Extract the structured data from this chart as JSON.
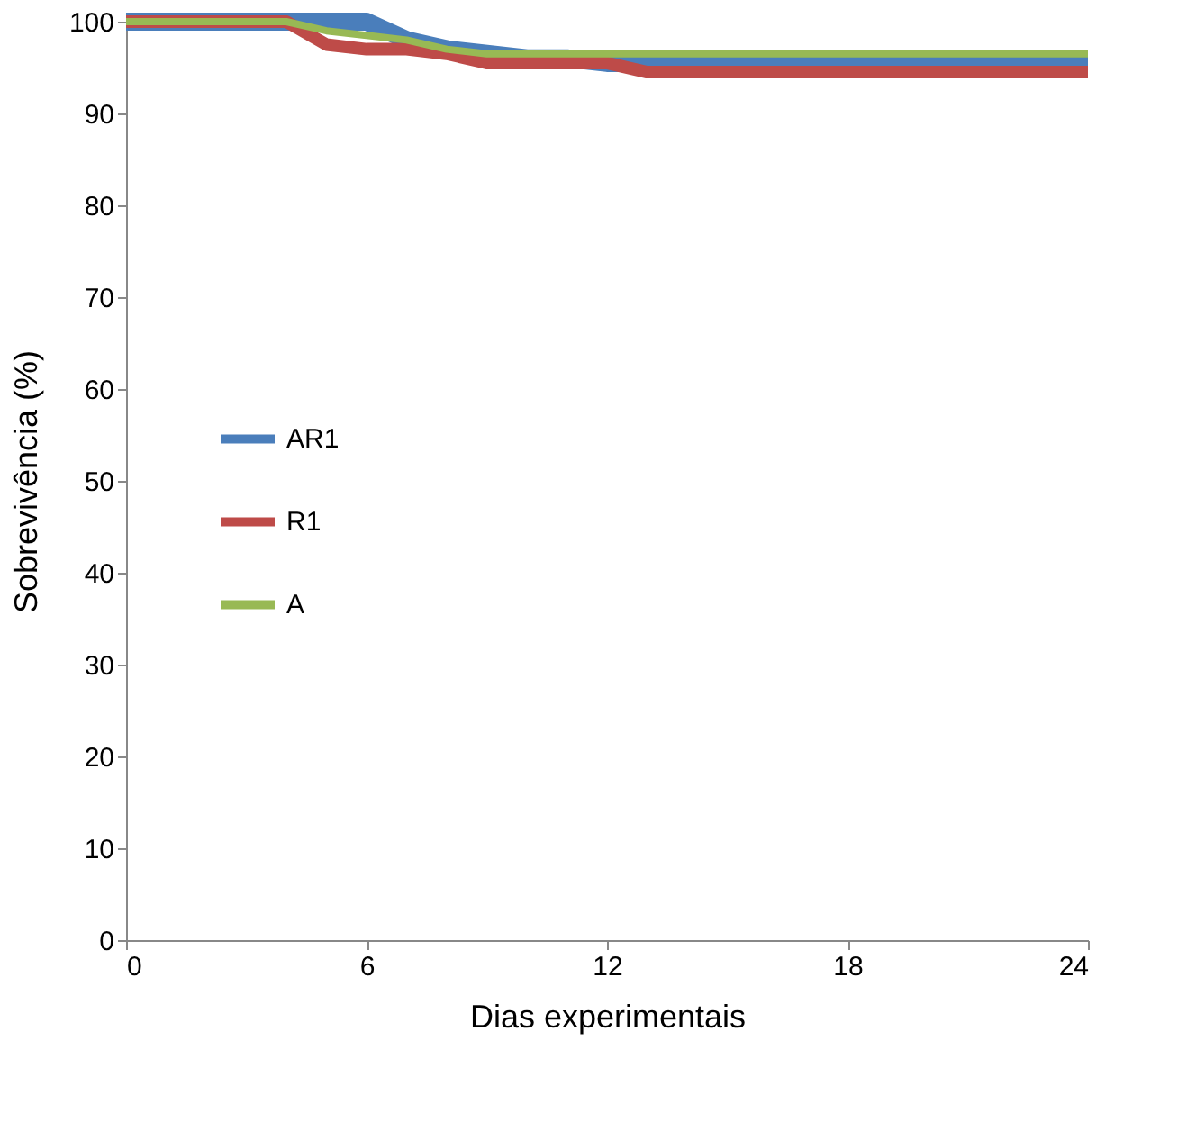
{
  "chart_data": {
    "type": "line",
    "xlabel": "Dias experimentais",
    "ylabel": "Sobrevivência (%)",
    "x": [
      0,
      1,
      2,
      3,
      4,
      5,
      6,
      7,
      8,
      9,
      10,
      11,
      12,
      13,
      14,
      15,
      16,
      17,
      18,
      19,
      20,
      21,
      22,
      23,
      24
    ],
    "series": [
      {
        "name": "AR1",
        "color": "#4a7ebb",
        "values": [
          100,
          100,
          100,
          100,
          100,
          100,
          100,
          98,
          97,
          96.5,
          96,
          96,
          95.5,
          95.5,
          95.5,
          95.5,
          95.5,
          95.5,
          95.5,
          95.5,
          95.5,
          95.5,
          95.5,
          95.5,
          95.5
        ]
      },
      {
        "name": "R1",
        "color": "#be4b48",
        "values": [
          100,
          100,
          100,
          100,
          100,
          97.5,
          97,
          97,
          96.5,
          95.5,
          95.5,
          95.5,
          95.5,
          94.5,
          94.5,
          94.5,
          94.5,
          94.5,
          94.5,
          94.5,
          94.5,
          94.5,
          94.5,
          94.5,
          94.5
        ]
      },
      {
        "name": "A",
        "color": "#98b954",
        "values": [
          100,
          100,
          100,
          100,
          100,
          99,
          98.5,
          98,
          97,
          96.5,
          96.5,
          96.5,
          96.5,
          96.5,
          96.5,
          96.5,
          96.5,
          96.5,
          96.5,
          96.5,
          96.5,
          96.5,
          96.5,
          96.5,
          96.5
        ]
      }
    ],
    "xlim": [
      0,
      24
    ],
    "xticks": [
      0,
      6,
      12,
      18,
      24
    ],
    "ylim": [
      0,
      100
    ],
    "yticks": [
      0,
      10,
      20,
      30,
      40,
      50,
      60,
      70,
      80,
      90,
      100
    ],
    "grid": false,
    "legend": "left",
    "marker": "none",
    "line_style": "solid"
  }
}
